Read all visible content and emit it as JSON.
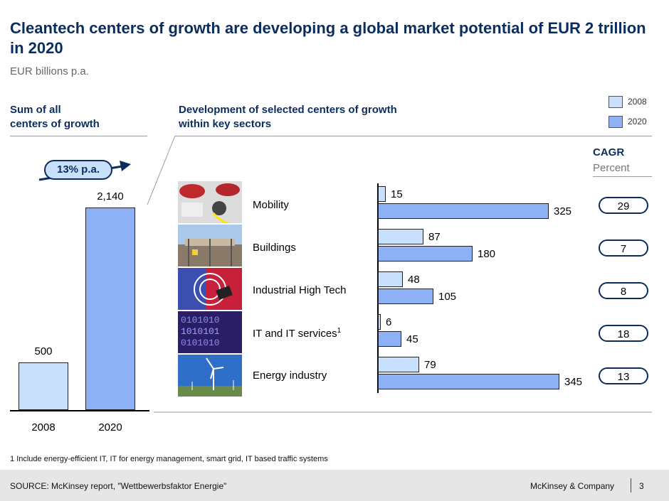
{
  "header": {
    "title": "Cleantech centers of growth are developing a global market potential of EUR 2 trillion in 2020",
    "subtitle": "EUR billions p.a."
  },
  "left_panel": {
    "heading_line1": "Sum of all",
    "heading_line2": "centers of growth",
    "growth_badge": "13% p.a."
  },
  "right_panel": {
    "heading_line1": "Development of selected centers of growth",
    "heading_line2": "within key sectors"
  },
  "legend": {
    "item_2008": "2008",
    "item_2020": "2020"
  },
  "cagr": {
    "title": "CAGR",
    "subtitle": "Percent"
  },
  "colors": {
    "bar_2008": "#c8e0fb",
    "bar_2020": "#8eb0f4",
    "title": "#0b2d5e"
  },
  "chart_data": [
    {
      "type": "bar",
      "categories": [
        "2008",
        "2020"
      ],
      "values": [
        500,
        2140
      ],
      "value_labels": [
        "500",
        "2,140"
      ],
      "ylim": [
        0,
        2140
      ]
    },
    {
      "type": "bar",
      "orientation": "horizontal",
      "categories": [
        "Mobility",
        "Buildings",
        "Industrial High Tech",
        "IT and IT services",
        "Energy industry"
      ],
      "category_footnotes": [
        "",
        "",
        "",
        "1",
        ""
      ],
      "series": [
        {
          "name": "2008",
          "values": [
            15,
            87,
            48,
            6,
            79
          ]
        },
        {
          "name": "2020",
          "values": [
            325,
            180,
            105,
            45,
            345
          ]
        }
      ],
      "cagr": [
        "29",
        "7",
        "8",
        "18",
        "13"
      ],
      "xlim": [
        0,
        345
      ]
    }
  ],
  "footnote": {
    "marker": "1",
    "text": "Include energy-efficient IT, IT for energy management, smart grid, IT based traffic systems"
  },
  "footer": {
    "source": "SOURCE: McKinsey report, \"Wettbewerbsfaktor Energie\"",
    "company": "McKinsey & Company",
    "page": "3"
  }
}
